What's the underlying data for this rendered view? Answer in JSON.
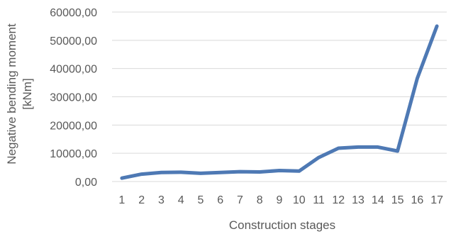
{
  "chart_data": {
    "type": "line",
    "title": "",
    "xlabel": "Construction stages",
    "ylabel_lines": [
      "Negative bending moment",
      "[kNm]"
    ],
    "ylim": [
      0,
      60000
    ],
    "yticks": [
      0,
      10000,
      20000,
      30000,
      40000,
      50000,
      60000
    ],
    "ytick_labels": [
      "0,00",
      "10000,00",
      "20000,00",
      "30000,00",
      "40000,00",
      "50000,00",
      "60000,00"
    ],
    "categories": [
      "1",
      "2",
      "3",
      "4",
      "5",
      "6",
      "7",
      "8",
      "9",
      "10",
      "11",
      "12",
      "13",
      "14",
      "15",
      "16",
      "17"
    ],
    "series": [
      {
        "color": "#4e79b4",
        "values": [
          1200,
          2600,
          3200,
          3300,
          2900,
          3200,
          3500,
          3400,
          3900,
          3700,
          8500,
          11800,
          12200,
          12200,
          10800,
          36500,
          55000
        ]
      }
    ],
    "grid": true,
    "legend": "none"
  }
}
